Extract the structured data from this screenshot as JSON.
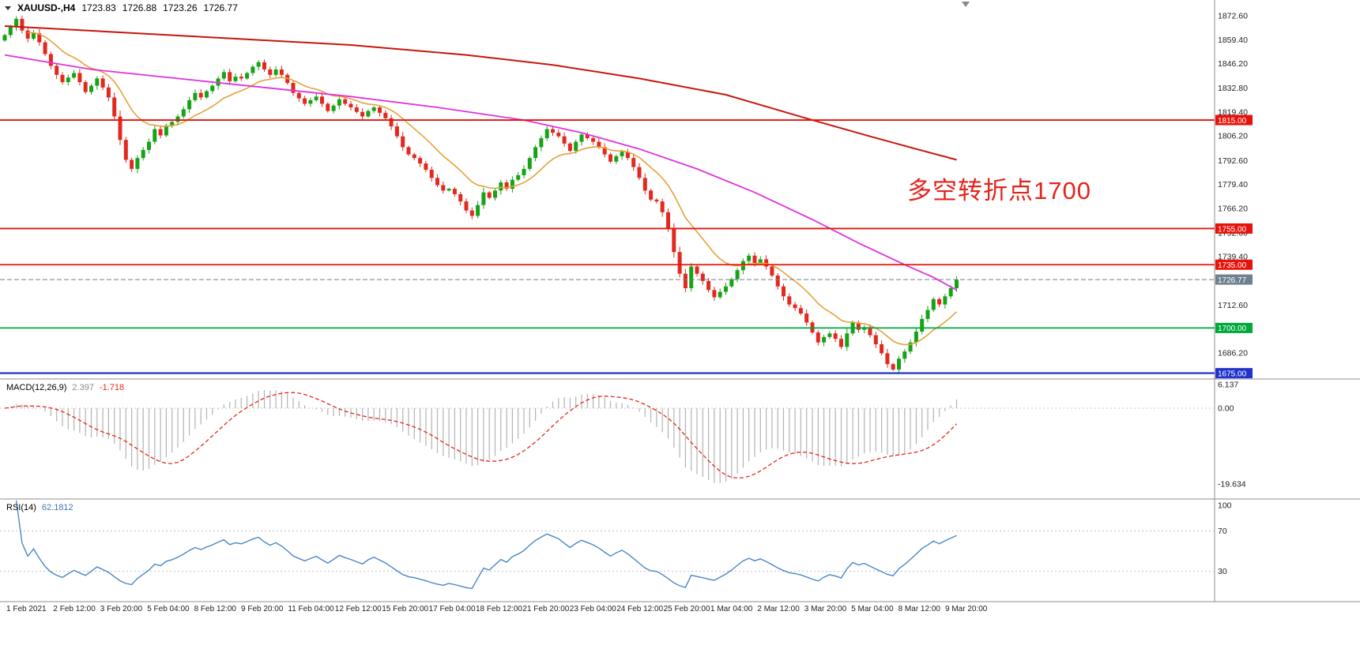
{
  "window": {
    "symbol_title": "XAUUSD-,H4",
    "open": "1723.83",
    "high": "1726.88",
    "low": "1723.26",
    "close": "1726.77"
  },
  "annotation": {
    "text": "多空转折点1700",
    "color": "#e3241b"
  },
  "chart_data": {
    "type": "candlestick",
    "symbol": "XAUUSD-",
    "timeframe": "H4",
    "title_ohlc": [
      1723.83,
      1726.88,
      1723.26,
      1726.77
    ],
    "ylim": [
      1672.8,
      1881.4
    ],
    "y_ticks": [
      "1872.60",
      "1859.40",
      "1846.20",
      "1832.80",
      "1819.40",
      "1806.20",
      "1792.60",
      "1779.40",
      "1766.20",
      "1752.60",
      "1739.40",
      "1712.60",
      "1686.20"
    ],
    "x_labels": [
      "1 Feb 2021",
      "2 Feb 12:00",
      "3 Feb 20:00",
      "5 Feb 04:00",
      "8 Feb 12:00",
      "9 Feb 20:00",
      "11 Feb 04:00",
      "12 Feb 12:00",
      "15 Feb 20:00",
      "17 Feb 04:00",
      "18 Feb 12:00",
      "21 Feb 20:00",
      "23 Feb 04:00",
      "24 Feb 12:00",
      "25 Feb 20:00",
      "1 Mar 04:00",
      "2 Mar 12:00",
      "3 Mar 20:00",
      "5 Mar 04:00",
      "8 Mar 12:00",
      "9 Mar 20:00"
    ],
    "open_first": 1859.0,
    "closes": [
      1862,
      1866.5,
      1871,
      1864.5,
      1860,
      1863,
      1858,
      1851.5,
      1845,
      1840,
      1836,
      1838.5,
      1841,
      1836,
      1830.5,
      1834,
      1838,
      1833,
      1827.5,
      1817,
      1804,
      1793,
      1788,
      1794,
      1798.5,
      1803,
      1810,
      1806.5,
      1812,
      1814,
      1817,
      1821,
      1826,
      1830,
      1827.5,
      1831,
      1834,
      1838,
      1841.5,
      1836.5,
      1839,
      1838,
      1841,
      1844.5,
      1847,
      1843,
      1840,
      1843,
      1840,
      1835.5,
      1830,
      1827,
      1824,
      1826,
      1828,
      1824,
      1820,
      1823,
      1826.5,
      1824,
      1822,
      1819.5,
      1817,
      1820,
      1822,
      1819,
      1816,
      1811.5,
      1806,
      1800,
      1796,
      1794,
      1791,
      1787.5,
      1783,
      1779,
      1776,
      1777,
      1774,
      1770,
      1765,
      1762,
      1768,
      1775,
      1772,
      1776,
      1780.5,
      1777,
      1782,
      1784.5,
      1788,
      1794,
      1800,
      1805,
      1810,
      1808,
      1806,
      1802,
      1798,
      1803,
      1807,
      1805,
      1803,
      1800,
      1796,
      1792,
      1795,
      1797.5,
      1794,
      1789,
      1783,
      1776,
      1771,
      1770,
      1764,
      1755,
      1742,
      1730,
      1722,
      1734,
      1730,
      1726,
      1721,
      1717,
      1720,
      1723,
      1727,
      1732,
      1737,
      1740,
      1736,
      1738,
      1734,
      1729,
      1723,
      1717.5,
      1713,
      1711,
      1708,
      1703,
      1697.5,
      1692,
      1695,
      1697,
      1694,
      1689.5,
      1697,
      1703,
      1699,
      1700.5,
      1696,
      1691,
      1686,
      1680,
      1677,
      1683,
      1687,
      1692,
      1698,
      1705,
      1710,
      1716,
      1713,
      1717.5,
      1722,
      1726.77
    ],
    "up_color": "#17a317",
    "down_color": "#e3281e",
    "hlines": [
      {
        "price": 1815.0,
        "label": "1815.00",
        "color": "#e6130b",
        "width": 1.8,
        "style": "solid"
      },
      {
        "price": 1755.0,
        "label": "1755.00",
        "color": "#e6130b",
        "width": 1.8,
        "style": "solid"
      },
      {
        "price": 1735.0,
        "label": "1735.00",
        "color": "#e6130b",
        "width": 1.8,
        "style": "solid"
      },
      {
        "price": 1726.77,
        "label": "1726.77",
        "color": "#708090",
        "width": 1,
        "style": "current"
      },
      {
        "price": 1700.0,
        "label": "1700.00",
        "color": "#00a83c",
        "width": 1.8,
        "style": "solid"
      },
      {
        "price": 1675.0,
        "label": "1675.00",
        "color": "#2233cc",
        "width": 2.2,
        "style": "solid"
      }
    ],
    "ma": {
      "orange": {
        "type": "ema",
        "period": 13,
        "color": "#e7a13a"
      },
      "magenta": {
        "color": "#dd33dd",
        "bars": [
          0,
          15,
          30,
          45,
          60,
          75,
          90,
          100,
          110,
          120,
          130,
          140,
          148,
          156,
          161,
          165
        ],
        "prices": [
          1851,
          1843,
          1838,
          1833,
          1828,
          1822,
          1815,
          1808,
          1799,
          1788,
          1775,
          1760,
          1747,
          1735,
          1728,
          1721
        ]
      },
      "red": {
        "color": "#c9150b",
        "bars": [
          0,
          20,
          40,
          60,
          80,
          95,
          110,
          125,
          140,
          150,
          158,
          165
        ],
        "prices": [
          1867,
          1863.5,
          1860,
          1856.5,
          1851,
          1845.5,
          1838,
          1829,
          1815,
          1806,
          1799,
          1793
        ]
      }
    },
    "macd": {
      "label": "MACD(12,26,9)",
      "value_main": "2.397",
      "value_signal": "-1.718",
      "fast": 12,
      "slow": 26,
      "signal": 9,
      "y_ticks": [
        "6.137",
        "0.00",
        "-19.634"
      ],
      "range": [
        -19.634,
        6.137
      ],
      "hist_color": "#b3b3b3",
      "signal_color": "#e3281e"
    },
    "rsi": {
      "label": "RSI(14)",
      "value": "62.1812",
      "period": 14,
      "levels": [
        70,
        30
      ],
      "y_ticks": [
        "100",
        "70",
        "30"
      ],
      "color": "#4a86c8",
      "level_color": "#c0c0c0"
    }
  }
}
